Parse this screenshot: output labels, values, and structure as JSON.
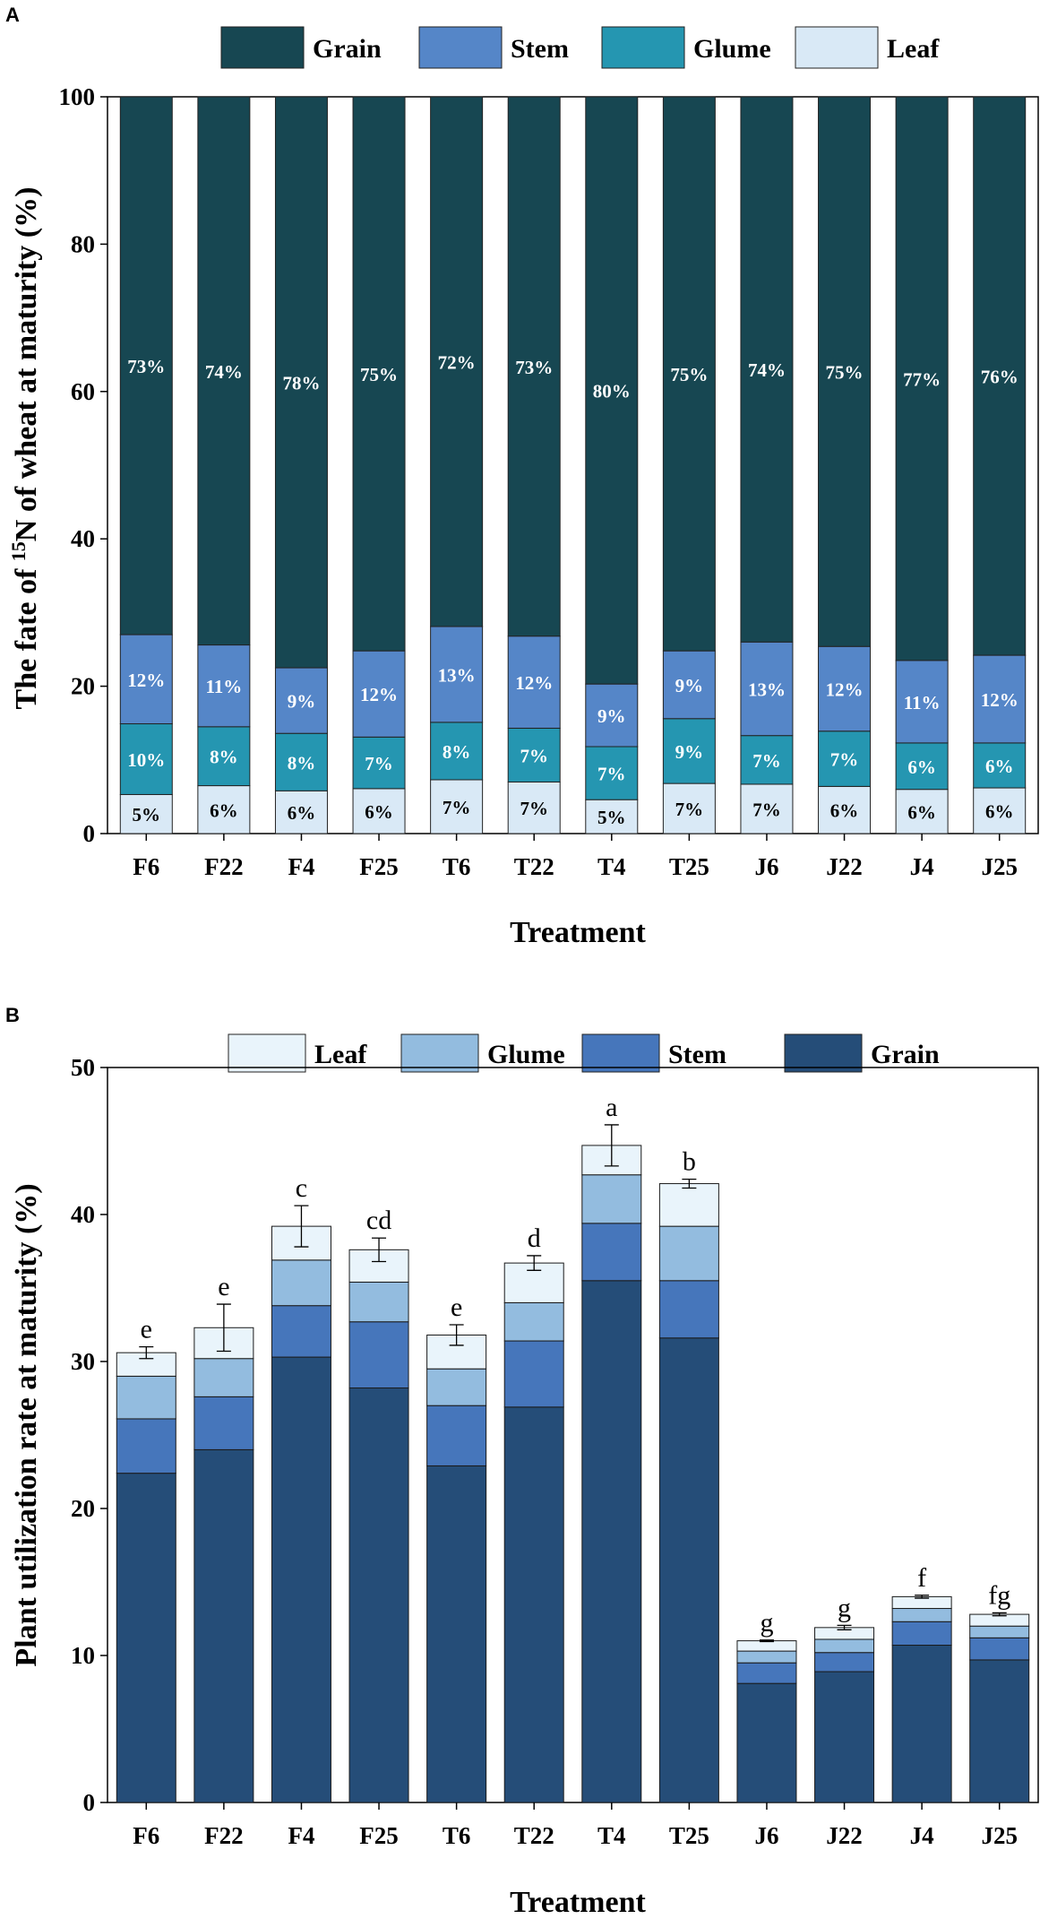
{
  "figure": {
    "panels": [
      {
        "panel_label": "A",
        "xlabel": "Treatment",
        "ylabel_prefix": "The fate of ",
        "ylabel_sup": "15",
        "ylabel_suffix": "N of wheat at maturity (%)"
      },
      {
        "panel_label": "B",
        "xlabel": "Treatment",
        "ylabel": "Plant utilization rate at maturity (%)"
      }
    ]
  },
  "chart_data": [
    {
      "type": "bar",
      "stacked": true,
      "categories": [
        "F6",
        "F22",
        "F4",
        "F25",
        "T6",
        "T22",
        "T4",
        "T25",
        "J6",
        "J22",
        "J4",
        "J25"
      ],
      "ylim": [
        0,
        100
      ],
      "yticks": [
        0,
        20,
        40,
        60,
        80,
        100
      ],
      "legend": [
        "Grain",
        "Stem",
        "Glume",
        "Leaf"
      ],
      "legend_position": "top",
      "series": [
        {
          "name": "Leaf",
          "color": "#d9e9f6",
          "values": [
            5.3,
            6.5,
            5.8,
            6.1,
            7.3,
            7.0,
            4.6,
            6.8,
            6.7,
            6.4,
            6.0,
            6.2
          ],
          "labels": [
            "5%",
            "6%",
            "6%",
            "6%",
            "7%",
            "7%",
            "5%",
            "7%",
            "7%",
            "6%",
            "6%",
            "6%"
          ]
        },
        {
          "name": "Glume",
          "color": "#2596b1",
          "values": [
            9.6,
            8.0,
            7.8,
            7.0,
            7.8,
            7.3,
            7.2,
            8.8,
            6.6,
            7.5,
            6.3,
            6.1
          ],
          "labels": [
            "10%",
            "8%",
            "8%",
            "7%",
            "8%",
            "7%",
            "7%",
            "9%",
            "7%",
            "7%",
            "6%",
            "6%"
          ]
        },
        {
          "name": "Stem",
          "color": "#5586c8",
          "values": [
            12.1,
            11.1,
            8.9,
            11.7,
            13.0,
            12.5,
            8.5,
            9.2,
            12.7,
            11.5,
            11.2,
            11.9
          ],
          "labels": [
            "12%",
            "11%",
            "9%",
            "12%",
            "13%",
            "12%",
            "9%",
            "9%",
            "13%",
            "12%",
            "11%",
            "12%"
          ]
        },
        {
          "name": "Grain",
          "color": "#174752",
          "values": [
            73.0,
            74.4,
            77.5,
            75.2,
            71.9,
            73.2,
            79.7,
            75.2,
            74.0,
            74.6,
            76.5,
            75.8
          ],
          "labels": [
            "73%",
            "74%",
            "78%",
            "75%",
            "72%",
            "73%",
            "80%",
            "75%",
            "74%",
            "75%",
            "77%",
            "76%"
          ]
        }
      ]
    },
    {
      "type": "bar",
      "stacked": true,
      "categories": [
        "F6",
        "F22",
        "F4",
        "F25",
        "T6",
        "T22",
        "T4",
        "T25",
        "J6",
        "J22",
        "J4",
        "J25"
      ],
      "ylim": [
        0,
        50
      ],
      "yticks": [
        0,
        10,
        20,
        30,
        40,
        50
      ],
      "legend": [
        "Leaf",
        "Glume",
        "Stem",
        "Grain"
      ],
      "legend_position": "top",
      "series": [
        {
          "name": "Grain",
          "color": "#254d78",
          "values": [
            22.4,
            24.0,
            30.3,
            28.2,
            22.9,
            26.9,
            35.5,
            31.6,
            8.1,
            8.9,
            10.7,
            9.7
          ]
        },
        {
          "name": "Stem",
          "color": "#4676bb",
          "values": [
            3.7,
            3.6,
            3.5,
            4.5,
            4.1,
            4.5,
            3.9,
            3.9,
            1.4,
            1.3,
            1.6,
            1.5
          ]
        },
        {
          "name": "Glume",
          "color": "#93bcdf",
          "values": [
            2.9,
            2.6,
            3.1,
            2.7,
            2.5,
            2.6,
            3.3,
            3.7,
            0.8,
            0.9,
            0.9,
            0.8
          ]
        },
        {
          "name": "Leaf",
          "color": "#e9f4fb",
          "values": [
            1.6,
            2.1,
            2.3,
            2.2,
            2.3,
            2.7,
            2.0,
            2.9,
            0.7,
            0.8,
            0.8,
            0.8
          ]
        }
      ],
      "totals": [
        30.6,
        32.3,
        39.2,
        37.6,
        31.8,
        36.7,
        44.7,
        42.1,
        11.0,
        11.9,
        14.0,
        12.8
      ],
      "error": [
        0.4,
        1.6,
        1.4,
        0.8,
        0.7,
        0.5,
        1.4,
        0.3,
        0.05,
        0.15,
        0.1,
        0.1
      ],
      "significance": [
        "e",
        "e",
        "c",
        "cd",
        "e",
        "d",
        "a",
        "b",
        "g",
        "g",
        "f",
        "fg"
      ]
    }
  ]
}
